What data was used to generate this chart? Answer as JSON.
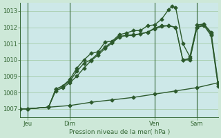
{
  "xlabel": "Pression niveau de la mer( hPa )",
  "bg_color": "#cde8d8",
  "plot_bg_color": "#cde8e8",
  "line_color": "#2d5a2d",
  "grid_color": "#a0c8a0",
  "axis_color": "#336633",
  "ylim": [
    1006.5,
    1013.5
  ],
  "yticks": [
    1007,
    1008,
    1009,
    1010,
    1011,
    1012,
    1013
  ],
  "xlim": [
    0,
    336
  ],
  "xtick_positions": [
    12,
    84,
    228,
    300
  ],
  "xtick_labels": [
    "Jeu",
    "Dim",
    "Ven",
    "Sam"
  ],
  "vline_positions": [
    12,
    84,
    228,
    300
  ],
  "line1_x": [
    0,
    12,
    48,
    60,
    72,
    84,
    96,
    108,
    120,
    132,
    144,
    156,
    168,
    180,
    192,
    204,
    216,
    228,
    240,
    252,
    258,
    264,
    276,
    288,
    300,
    312,
    324,
    336
  ],
  "line1_y": [
    1007.0,
    1007.0,
    1007.1,
    1008.2,
    1008.4,
    1008.8,
    1009.5,
    1010.0,
    1010.4,
    1010.5,
    1011.1,
    1011.15,
    1011.55,
    1011.65,
    1011.8,
    1011.8,
    1012.1,
    1012.15,
    1012.5,
    1013.1,
    1013.3,
    1013.2,
    1011.0,
    1010.2,
    1012.15,
    1012.2,
    1011.7,
    1008.6
  ],
  "line2_x": [
    0,
    12,
    48,
    60,
    72,
    84,
    96,
    108,
    120,
    132,
    144,
    156,
    168,
    180,
    192,
    204,
    216,
    228,
    240,
    252,
    264,
    276,
    288,
    300,
    312,
    324,
    336
  ],
  "line2_y": [
    1007.0,
    1007.0,
    1007.1,
    1008.2,
    1008.4,
    1008.7,
    1009.3,
    1009.8,
    1010.0,
    1010.4,
    1010.8,
    1011.1,
    1011.45,
    1011.5,
    1011.55,
    1011.6,
    1011.7,
    1011.95,
    1012.1,
    1012.1,
    1012.0,
    1010.0,
    1010.1,
    1012.0,
    1012.2,
    1011.6,
    1008.5
  ],
  "line3_x": [
    0,
    12,
    48,
    60,
    72,
    84,
    96,
    108,
    120,
    132,
    144,
    156,
    168,
    180,
    192,
    204,
    216,
    228,
    240,
    252,
    264,
    276,
    288,
    300,
    312,
    324,
    336
  ],
  "line3_y": [
    1007.0,
    1007.0,
    1007.1,
    1008.1,
    1008.3,
    1008.6,
    1009.0,
    1009.5,
    1009.95,
    1010.3,
    1010.7,
    1011.05,
    1011.4,
    1011.5,
    1011.5,
    1011.6,
    1011.7,
    1011.9,
    1012.05,
    1012.1,
    1012.0,
    1010.0,
    1010.0,
    1012.0,
    1012.1,
    1011.5,
    1008.4
  ],
  "line4_x": [
    0,
    12,
    48,
    84,
    120,
    156,
    192,
    228,
    264,
    300,
    336
  ],
  "line4_y": [
    1007.0,
    1007.0,
    1007.1,
    1007.2,
    1007.4,
    1007.55,
    1007.7,
    1007.9,
    1008.1,
    1008.3,
    1008.6
  ],
  "marker_size": 2.5,
  "lw": 1.0
}
